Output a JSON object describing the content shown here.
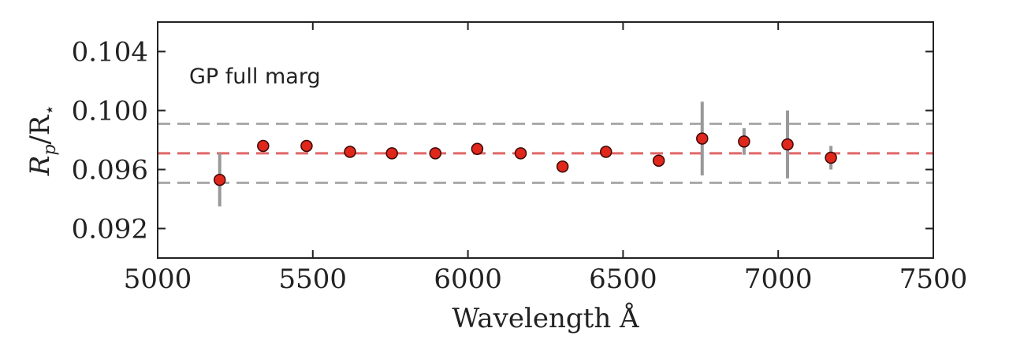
{
  "chart_data": {
    "type": "scatter",
    "title": "",
    "xlabel": "Wavelength Å",
    "ylabel_main": "R",
    "ylabel_sub1": "p",
    "ylabel_mid": "/R",
    "ylabel_sub2": "⋆",
    "annotation": "GP full marg",
    "xlim": [
      5000,
      7500
    ],
    "ylim": [
      0.09,
      0.106
    ],
    "xticks": [
      5000,
      5500,
      6000,
      6500,
      7000,
      7500
    ],
    "xtick_labels": [
      "5000",
      "5500",
      "6000",
      "6500",
      "7000",
      "7500"
    ],
    "yticks": [
      0.092,
      0.096,
      0.1,
      0.104
    ],
    "ytick_labels": [
      "0.092",
      "0.096",
      "0.100",
      "0.104"
    ],
    "grid": false,
    "reference_lines": [
      {
        "y": 0.0991,
        "color": "#a8a8a8"
      },
      {
        "y": 0.0971,
        "color": "#e06666"
      },
      {
        "y": 0.0951,
        "color": "#a8a8a8"
      }
    ],
    "series": [
      {
        "marker_color": "#e0271b",
        "errorbar_color": "#999999",
        "points": [
          {
            "x": 5200,
            "y": 0.0953,
            "yerr": 0.0018
          },
          {
            "x": 5340,
            "y": 0.0976,
            "yerr": 0.0003
          },
          {
            "x": 5480,
            "y": 0.0976,
            "yerr": 0.0004
          },
          {
            "x": 5620,
            "y": 0.0972,
            "yerr": 0.0002
          },
          {
            "x": 5755,
            "y": 0.0971,
            "yerr": 0.0002
          },
          {
            "x": 5895,
            "y": 0.0971,
            "yerr": 0.0002
          },
          {
            "x": 6030,
            "y": 0.0974,
            "yerr": 0.0002
          },
          {
            "x": 6170,
            "y": 0.0971,
            "yerr": 0.0002
          },
          {
            "x": 6305,
            "y": 0.0962,
            "yerr": 0.0002
          },
          {
            "x": 6445,
            "y": 0.0972,
            "yerr": 0.0002
          },
          {
            "x": 6615,
            "y": 0.0966,
            "yerr": 0.0002
          },
          {
            "x": 6755,
            "y": 0.0981,
            "yerr": 0.0025
          },
          {
            "x": 6890,
            "y": 0.0979,
            "yerr": 0.0009
          },
          {
            "x": 7030,
            "y": 0.0977,
            "yerr": 0.0023
          },
          {
            "x": 7170,
            "y": 0.0968,
            "yerr": 0.0008
          }
        ]
      }
    ]
  }
}
